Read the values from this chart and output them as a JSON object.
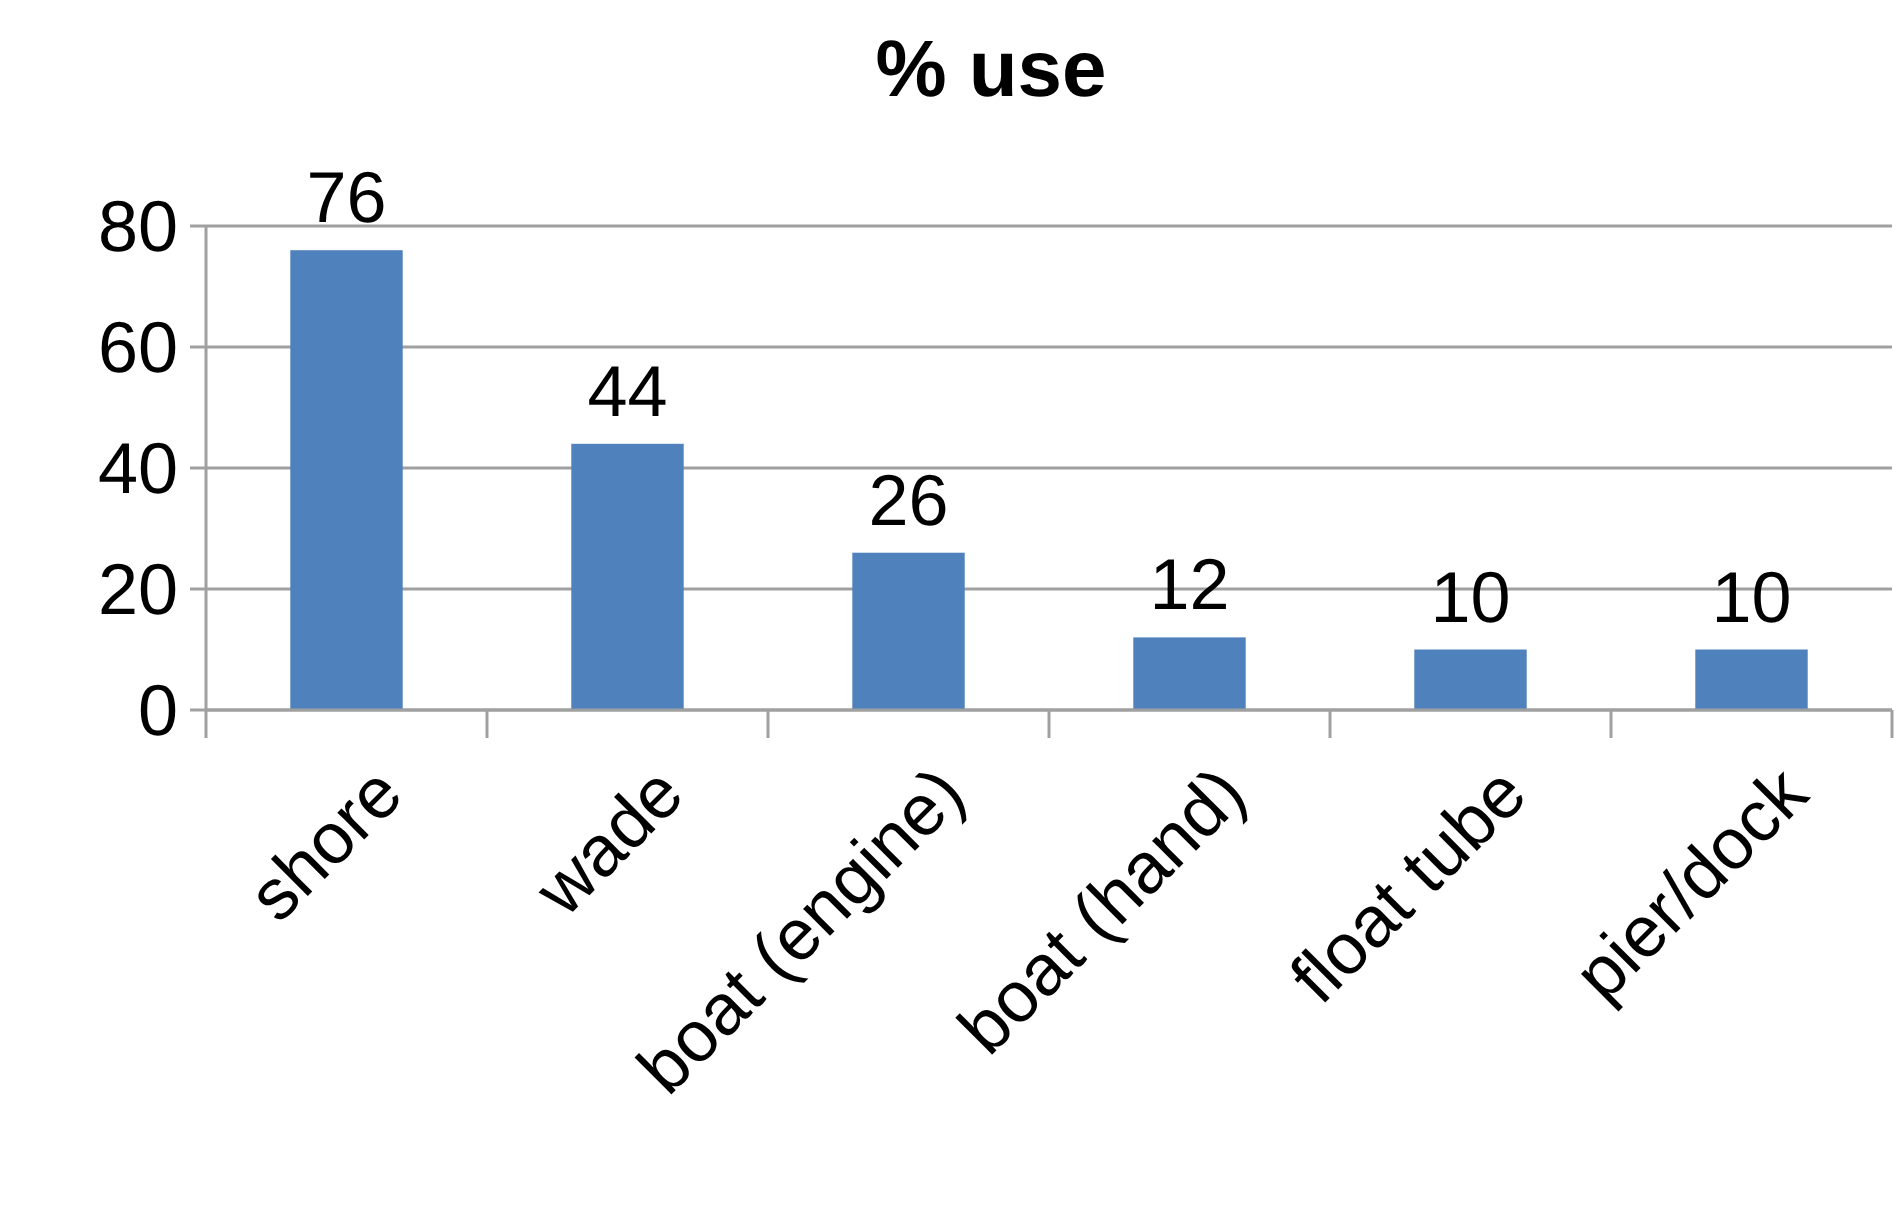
{
  "chart_data": {
    "type": "bar",
    "title": "% use",
    "categories": [
      "shore",
      "wade",
      "boat (engine)",
      "boat (hand)",
      "float tube",
      "pier/dock"
    ],
    "values": [
      76,
      44,
      26,
      12,
      10,
      10
    ],
    "color": "#4f81bd",
    "ylim": [
      0,
      80
    ],
    "yticks": [
      0,
      20,
      40,
      60,
      80
    ],
    "grid": "y",
    "data_labels": true
  }
}
